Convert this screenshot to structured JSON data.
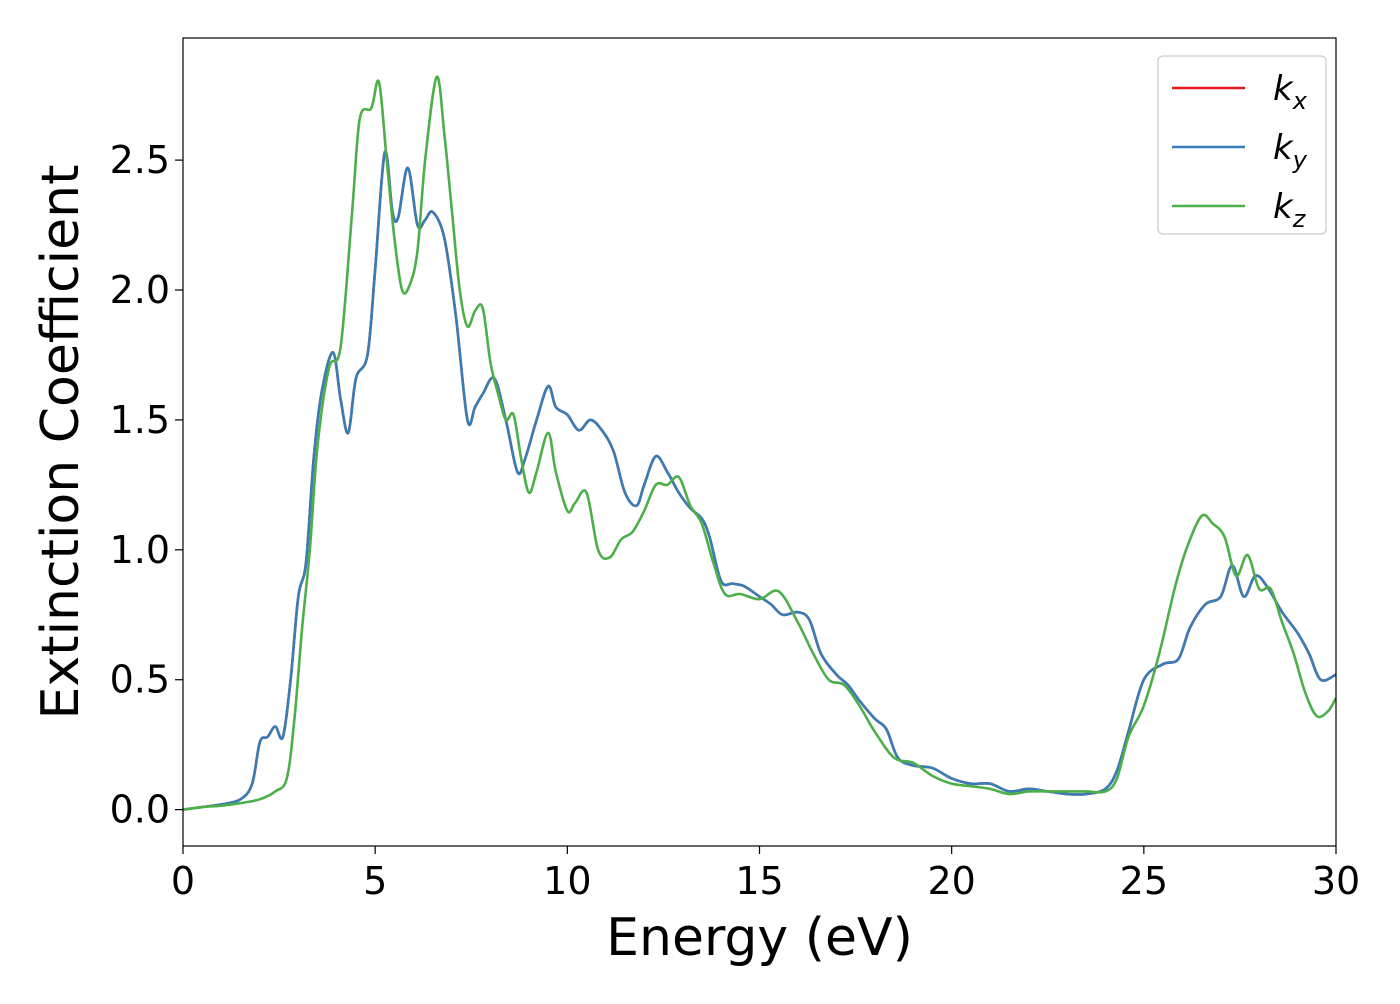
{
  "chart_data": {
    "type": "line",
    "title": "",
    "xlabel": "Energy (eV)",
    "ylabel": "Extinction Coefficient",
    "xlim": [
      0,
      30
    ],
    "ylim": [
      -0.14,
      2.97
    ],
    "xticks": [
      0,
      5,
      10,
      15,
      20,
      25,
      30
    ],
    "xtick_labels": [
      "0",
      "5",
      "10",
      "15",
      "20",
      "25",
      "30"
    ],
    "yticks": [
      0.0,
      0.5,
      1.0,
      1.5,
      2.0,
      2.5
    ],
    "ytick_labels": [
      "0.0",
      "0.5",
      "1.0",
      "1.5",
      "2.0",
      "2.5"
    ],
    "grid": false,
    "legend_position": "top-right",
    "series": [
      {
        "name": "k_x",
        "legend_base": "k",
        "legend_sub": "x",
        "color": "#e41a1c",
        "x": [
          0,
          0.5,
          1,
          1.5,
          1.8,
          2,
          2.2,
          2.4,
          2.6,
          2.8,
          3,
          3.2,
          3.4,
          3.6,
          3.9,
          4.1,
          4.3,
          4.5,
          4.8,
          5.0,
          5.25,
          5.45,
          5.6,
          5.85,
          6.1,
          6.3,
          6.5,
          6.8,
          7.1,
          7.4,
          7.6,
          7.8,
          8.1,
          8.4,
          8.7,
          8.9,
          9.2,
          9.5,
          9.7,
          10,
          10.3,
          10.6,
          10.9,
          11.2,
          11.5,
          11.8,
          12.0,
          12.3,
          12.6,
          12.9,
          13.2,
          13.5,
          13.7,
          14,
          14.3,
          14.6,
          15,
          15.3,
          15.6,
          16,
          16.3,
          16.6,
          17,
          17.3,
          17.6,
          18,
          18.3,
          18.6,
          19,
          19.5,
          20,
          20.5,
          21,
          21.5,
          22,
          22.5,
          23,
          23.5,
          24,
          24.3,
          24.6,
          25,
          25.5,
          25.9,
          26.2,
          26.6,
          27,
          27.3,
          27.6,
          27.9,
          28.2,
          28.6,
          29,
          29.3,
          29.6,
          30
        ],
        "y": [
          0.0,
          0.01,
          0.02,
          0.04,
          0.1,
          0.26,
          0.28,
          0.32,
          0.28,
          0.5,
          0.82,
          0.95,
          1.35,
          1.6,
          1.76,
          1.58,
          1.45,
          1.66,
          1.75,
          2.08,
          2.53,
          2.3,
          2.28,
          2.47,
          2.25,
          2.27,
          2.3,
          2.2,
          1.9,
          1.5,
          1.55,
          1.6,
          1.66,
          1.5,
          1.3,
          1.35,
          1.5,
          1.63,
          1.55,
          1.52,
          1.46,
          1.5,
          1.46,
          1.38,
          1.22,
          1.17,
          1.25,
          1.36,
          1.3,
          1.22,
          1.16,
          1.12,
          1.05,
          0.88,
          0.87,
          0.86,
          0.82,
          0.79,
          0.75,
          0.76,
          0.73,
          0.6,
          0.52,
          0.48,
          0.42,
          0.35,
          0.31,
          0.2,
          0.17,
          0.16,
          0.12,
          0.1,
          0.1,
          0.07,
          0.08,
          0.07,
          0.06,
          0.06,
          0.08,
          0.15,
          0.3,
          0.5,
          0.56,
          0.58,
          0.7,
          0.79,
          0.82,
          0.94,
          0.82,
          0.9,
          0.86,
          0.76,
          0.68,
          0.6,
          0.5,
          0.52
        ]
      },
      {
        "name": "k_y",
        "legend_base": "k",
        "legend_sub": "y",
        "color": "#377eb8",
        "x": [
          0,
          0.5,
          1,
          1.5,
          1.8,
          2,
          2.2,
          2.4,
          2.6,
          2.8,
          3,
          3.2,
          3.4,
          3.6,
          3.9,
          4.1,
          4.3,
          4.5,
          4.8,
          5.0,
          5.25,
          5.45,
          5.6,
          5.85,
          6.1,
          6.3,
          6.5,
          6.8,
          7.1,
          7.4,
          7.6,
          7.8,
          8.1,
          8.4,
          8.7,
          8.9,
          9.2,
          9.5,
          9.7,
          10,
          10.3,
          10.6,
          10.9,
          11.2,
          11.5,
          11.8,
          12.0,
          12.3,
          12.6,
          12.9,
          13.2,
          13.5,
          13.7,
          14,
          14.3,
          14.6,
          15,
          15.3,
          15.6,
          16,
          16.3,
          16.6,
          17,
          17.3,
          17.6,
          18,
          18.3,
          18.6,
          19,
          19.5,
          20,
          20.5,
          21,
          21.5,
          22,
          22.5,
          23,
          23.5,
          24,
          24.3,
          24.6,
          25,
          25.5,
          25.9,
          26.2,
          26.6,
          27,
          27.3,
          27.6,
          27.9,
          28.2,
          28.6,
          29,
          29.3,
          29.6,
          30
        ],
        "y": [
          0.0,
          0.01,
          0.02,
          0.04,
          0.1,
          0.26,
          0.28,
          0.32,
          0.28,
          0.5,
          0.82,
          0.95,
          1.35,
          1.6,
          1.76,
          1.58,
          1.45,
          1.66,
          1.75,
          2.08,
          2.53,
          2.3,
          2.28,
          2.47,
          2.25,
          2.27,
          2.3,
          2.2,
          1.9,
          1.5,
          1.55,
          1.6,
          1.66,
          1.5,
          1.3,
          1.35,
          1.5,
          1.63,
          1.55,
          1.52,
          1.46,
          1.5,
          1.46,
          1.38,
          1.22,
          1.17,
          1.25,
          1.36,
          1.3,
          1.22,
          1.16,
          1.12,
          1.05,
          0.88,
          0.87,
          0.86,
          0.82,
          0.79,
          0.75,
          0.76,
          0.73,
          0.6,
          0.52,
          0.48,
          0.42,
          0.35,
          0.31,
          0.2,
          0.17,
          0.16,
          0.12,
          0.1,
          0.1,
          0.07,
          0.08,
          0.07,
          0.06,
          0.06,
          0.08,
          0.15,
          0.3,
          0.5,
          0.56,
          0.58,
          0.7,
          0.79,
          0.82,
          0.94,
          0.82,
          0.9,
          0.86,
          0.76,
          0.68,
          0.6,
          0.5,
          0.52
        ]
      },
      {
        "name": "k_z",
        "legend_base": "k",
        "legend_sub": "z",
        "color": "#4daf4a",
        "x": [
          0,
          0.5,
          1,
          1.5,
          2,
          2.4,
          2.7,
          2.9,
          3.1,
          3.3,
          3.5,
          3.8,
          4.1,
          4.4,
          4.6,
          4.9,
          5.1,
          5.3,
          5.5,
          5.7,
          5.9,
          6.1,
          6.3,
          6.6,
          6.8,
          7.0,
          7.2,
          7.4,
          7.6,
          7.8,
          8.0,
          8.2,
          8.4,
          8.6,
          8.8,
          9.0,
          9.2,
          9.5,
          9.7,
          10,
          10.2,
          10.5,
          10.8,
          11.1,
          11.4,
          11.7,
          12.0,
          12.3,
          12.6,
          12.9,
          13.2,
          13.5,
          13.8,
          14.1,
          14.5,
          15,
          15.5,
          16,
          16.4,
          16.8,
          17.2,
          17.6,
          18,
          18.5,
          19,
          19.5,
          20,
          20.5,
          21,
          21.5,
          22,
          22.5,
          23,
          23.5,
          24,
          24.3,
          24.6,
          25,
          25.4,
          25.8,
          26.1,
          26.5,
          26.8,
          27.1,
          27.4,
          27.7,
          28.0,
          28.3,
          28.6,
          28.9,
          29.2,
          29.5,
          29.8,
          30
        ],
        "y": [
          0.0,
          0.01,
          0.015,
          0.025,
          0.04,
          0.07,
          0.12,
          0.35,
          0.7,
          1.0,
          1.4,
          1.7,
          1.78,
          2.3,
          2.66,
          2.7,
          2.8,
          2.5,
          2.2,
          2.0,
          2.02,
          2.15,
          2.5,
          2.82,
          2.6,
          2.3,
          2.0,
          1.86,
          1.92,
          1.93,
          1.72,
          1.6,
          1.5,
          1.52,
          1.35,
          1.22,
          1.3,
          1.45,
          1.3,
          1.15,
          1.18,
          1.22,
          1.0,
          0.97,
          1.04,
          1.07,
          1.15,
          1.25,
          1.25,
          1.28,
          1.17,
          1.1,
          0.95,
          0.83,
          0.83,
          0.81,
          0.84,
          0.72,
          0.6,
          0.5,
          0.48,
          0.4,
          0.3,
          0.2,
          0.18,
          0.13,
          0.1,
          0.09,
          0.08,
          0.06,
          0.07,
          0.07,
          0.07,
          0.07,
          0.07,
          0.12,
          0.28,
          0.4,
          0.6,
          0.85,
          1.0,
          1.13,
          1.1,
          1.05,
          0.9,
          0.98,
          0.85,
          0.85,
          0.72,
          0.6,
          0.45,
          0.36,
          0.38,
          0.43
        ]
      }
    ]
  }
}
